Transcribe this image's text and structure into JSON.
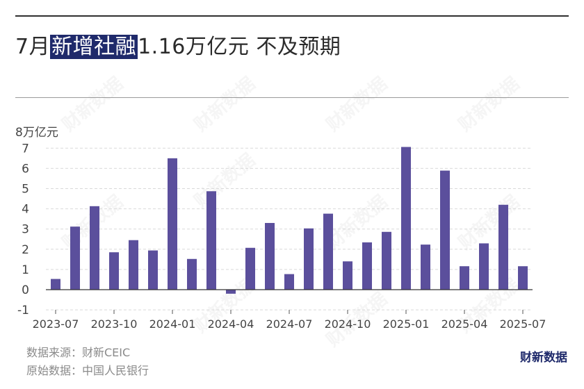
{
  "title": {
    "prefix": "7月",
    "highlight": "新增社融",
    "suffix": "1.16万亿元 不及预期"
  },
  "colors": {
    "bar": "#5b4f9c",
    "highlight_bg": "#1f2a6b",
    "grid": "#d9d9d9",
    "axis": "#333333"
  },
  "chart_data": {
    "type": "bar",
    "unit_label": "8万亿元",
    "ylim": [
      -1,
      8
    ],
    "yticks": [
      7,
      6,
      5,
      4,
      3,
      2,
      1,
      0,
      -1
    ],
    "grid": true,
    "x": [
      "2023-07",
      "2023-08",
      "2023-09",
      "2023-10",
      "2023-11",
      "2023-12",
      "2024-01",
      "2024-02",
      "2024-03",
      "2024-04",
      "2024-05",
      "2024-06",
      "2024-07",
      "2024-08",
      "2024-09",
      "2024-10",
      "2024-11",
      "2024-12",
      "2025-01",
      "2025-02",
      "2025-03",
      "2025-04",
      "2025-05",
      "2025-06",
      "2025-07"
    ],
    "values": [
      0.53,
      3.12,
      4.13,
      1.85,
      2.45,
      1.94,
      6.5,
      1.52,
      4.87,
      -0.2,
      2.07,
      3.3,
      0.77,
      3.03,
      3.76,
      1.4,
      2.34,
      2.86,
      7.06,
      2.23,
      5.89,
      1.16,
      2.29,
      4.2,
      1.16
    ],
    "xtick_labels": [
      "2023-07",
      "2023-10",
      "2024-01",
      "2024-04",
      "2024-07",
      "2024-10",
      "2025-01",
      "2025-04",
      "2025-07"
    ]
  },
  "footer": {
    "source": "数据来源：财新CEIC",
    "raw": "原始数据：中国人民银行"
  },
  "brand": "财新数据",
  "watermark": "财新数据"
}
